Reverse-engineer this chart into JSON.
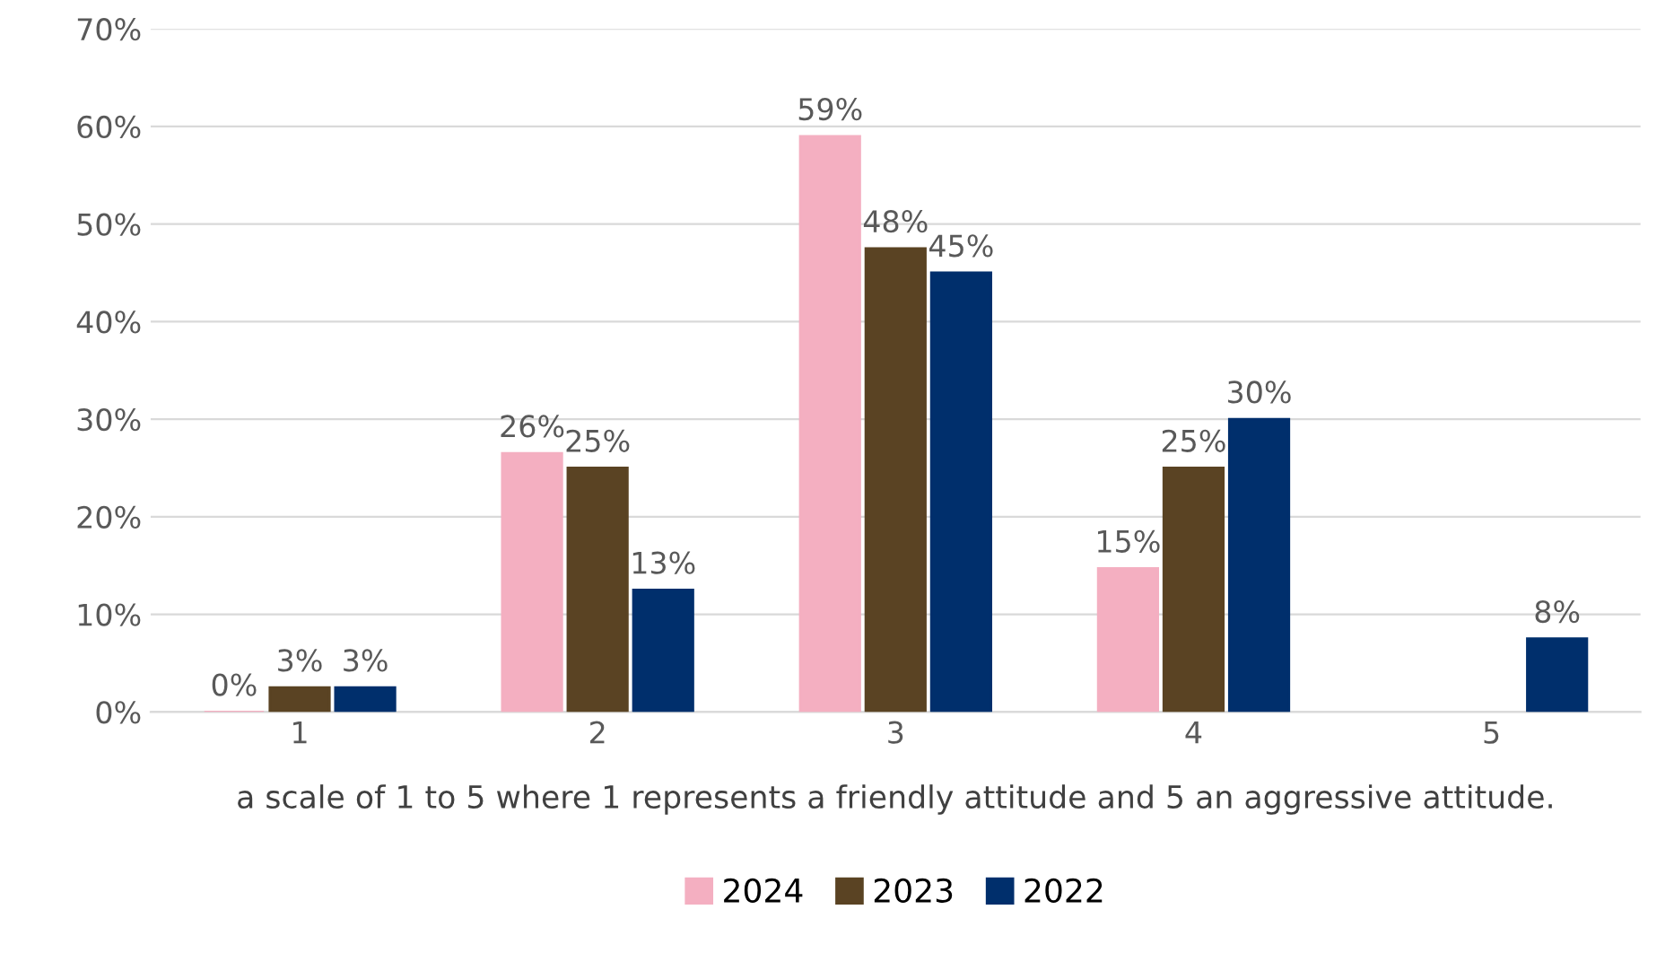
{
  "chart_data": {
    "type": "bar",
    "xlabel": "a scale of 1 to 5 where 1 represents a friendly attitude and 5 an aggressive attitude.",
    "categories": [
      "1",
      "2",
      "3",
      "4",
      "5"
    ],
    "series": [
      {
        "name": "2024",
        "color": "#f4afc1",
        "values": [
          0,
          26.5,
          59,
          14.7,
          null
        ],
        "value_labels": [
          "0%",
          "26%",
          "59%",
          "15%",
          null
        ]
      },
      {
        "name": "2023",
        "color": "#5a4323",
        "values": [
          2.5,
          25,
          47.5,
          25,
          null
        ],
        "value_labels": [
          "3%",
          "25%",
          "48%",
          "25%",
          null
        ]
      },
      {
        "name": "2022",
        "color": "#002f6c",
        "values": [
          2.5,
          12.5,
          45,
          30,
          7.5
        ],
        "value_labels": [
          "3%",
          "13%",
          "45%",
          "30%",
          "8%"
        ]
      }
    ],
    "ylim": [
      0,
      70
    ],
    "yticks": [
      {
        "value": 0,
        "label": "0%"
      },
      {
        "value": 10,
        "label": "10%"
      },
      {
        "value": 20,
        "label": "20%"
      },
      {
        "value": 30,
        "label": "30%"
      },
      {
        "value": 40,
        "label": "40%"
      },
      {
        "value": 50,
        "label": "50%"
      },
      {
        "value": 60,
        "label": "60%"
      },
      {
        "value": 70,
        "label": "70%"
      }
    ],
    "grid": "y",
    "legend": "bottom"
  }
}
